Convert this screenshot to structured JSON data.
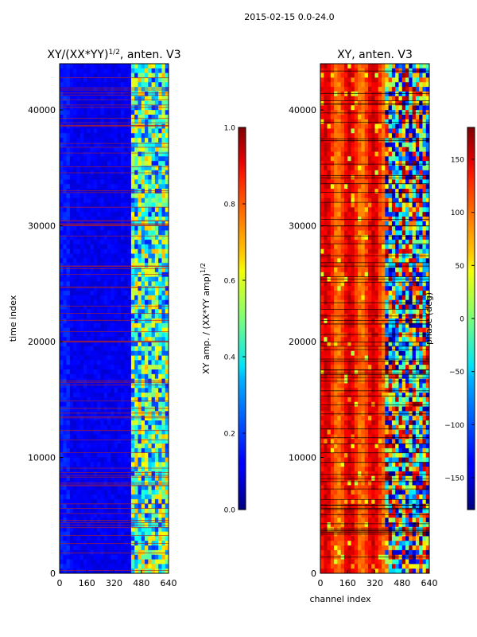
{
  "suptitle": "2015-02-15 0.0-24.0",
  "chart_data": [
    {
      "type": "heatmap",
      "title_main": "XY/(XX*YY)",
      "title_sup": "1/2",
      "title_rest": ", anten. V3",
      "ylabel": "time index",
      "xlim": [
        0,
        640
      ],
      "ylim": [
        0,
        44000
      ],
      "xticks": [
        0,
        160,
        320,
        480,
        640
      ],
      "yticks": [
        0,
        10000,
        20000,
        30000,
        40000
      ],
      "colorbar": {
        "label_main": "XY amp. / (XX*YY amp)",
        "label_sup": "1/2",
        "range": [
          0.0,
          1.0
        ],
        "ticks": [
          "0.0",
          "0.2",
          "0.4",
          "0.6",
          "0.8",
          "1.0"
        ],
        "colormap": "jet"
      }
    },
    {
      "type": "heatmap",
      "title": "XY, anten. V3",
      "xlabel": "channel index",
      "xlim": [
        0,
        640
      ],
      "ylim": [
        0,
        44000
      ],
      "xticks": [
        0,
        160,
        320,
        480,
        640
      ],
      "yticks": [
        0,
        10000,
        20000,
        30000,
        40000
      ],
      "colorbar": {
        "label": "phase (deg)",
        "range": [
          -180,
          180
        ],
        "ticks": [
          -150,
          -100,
          -50,
          0,
          50,
          100,
          150
        ],
        "tick_labels": [
          "−150",
          "−100",
          "−50",
          "0",
          "50",
          "100",
          "150"
        ],
        "colormap": "jet"
      }
    }
  ]
}
